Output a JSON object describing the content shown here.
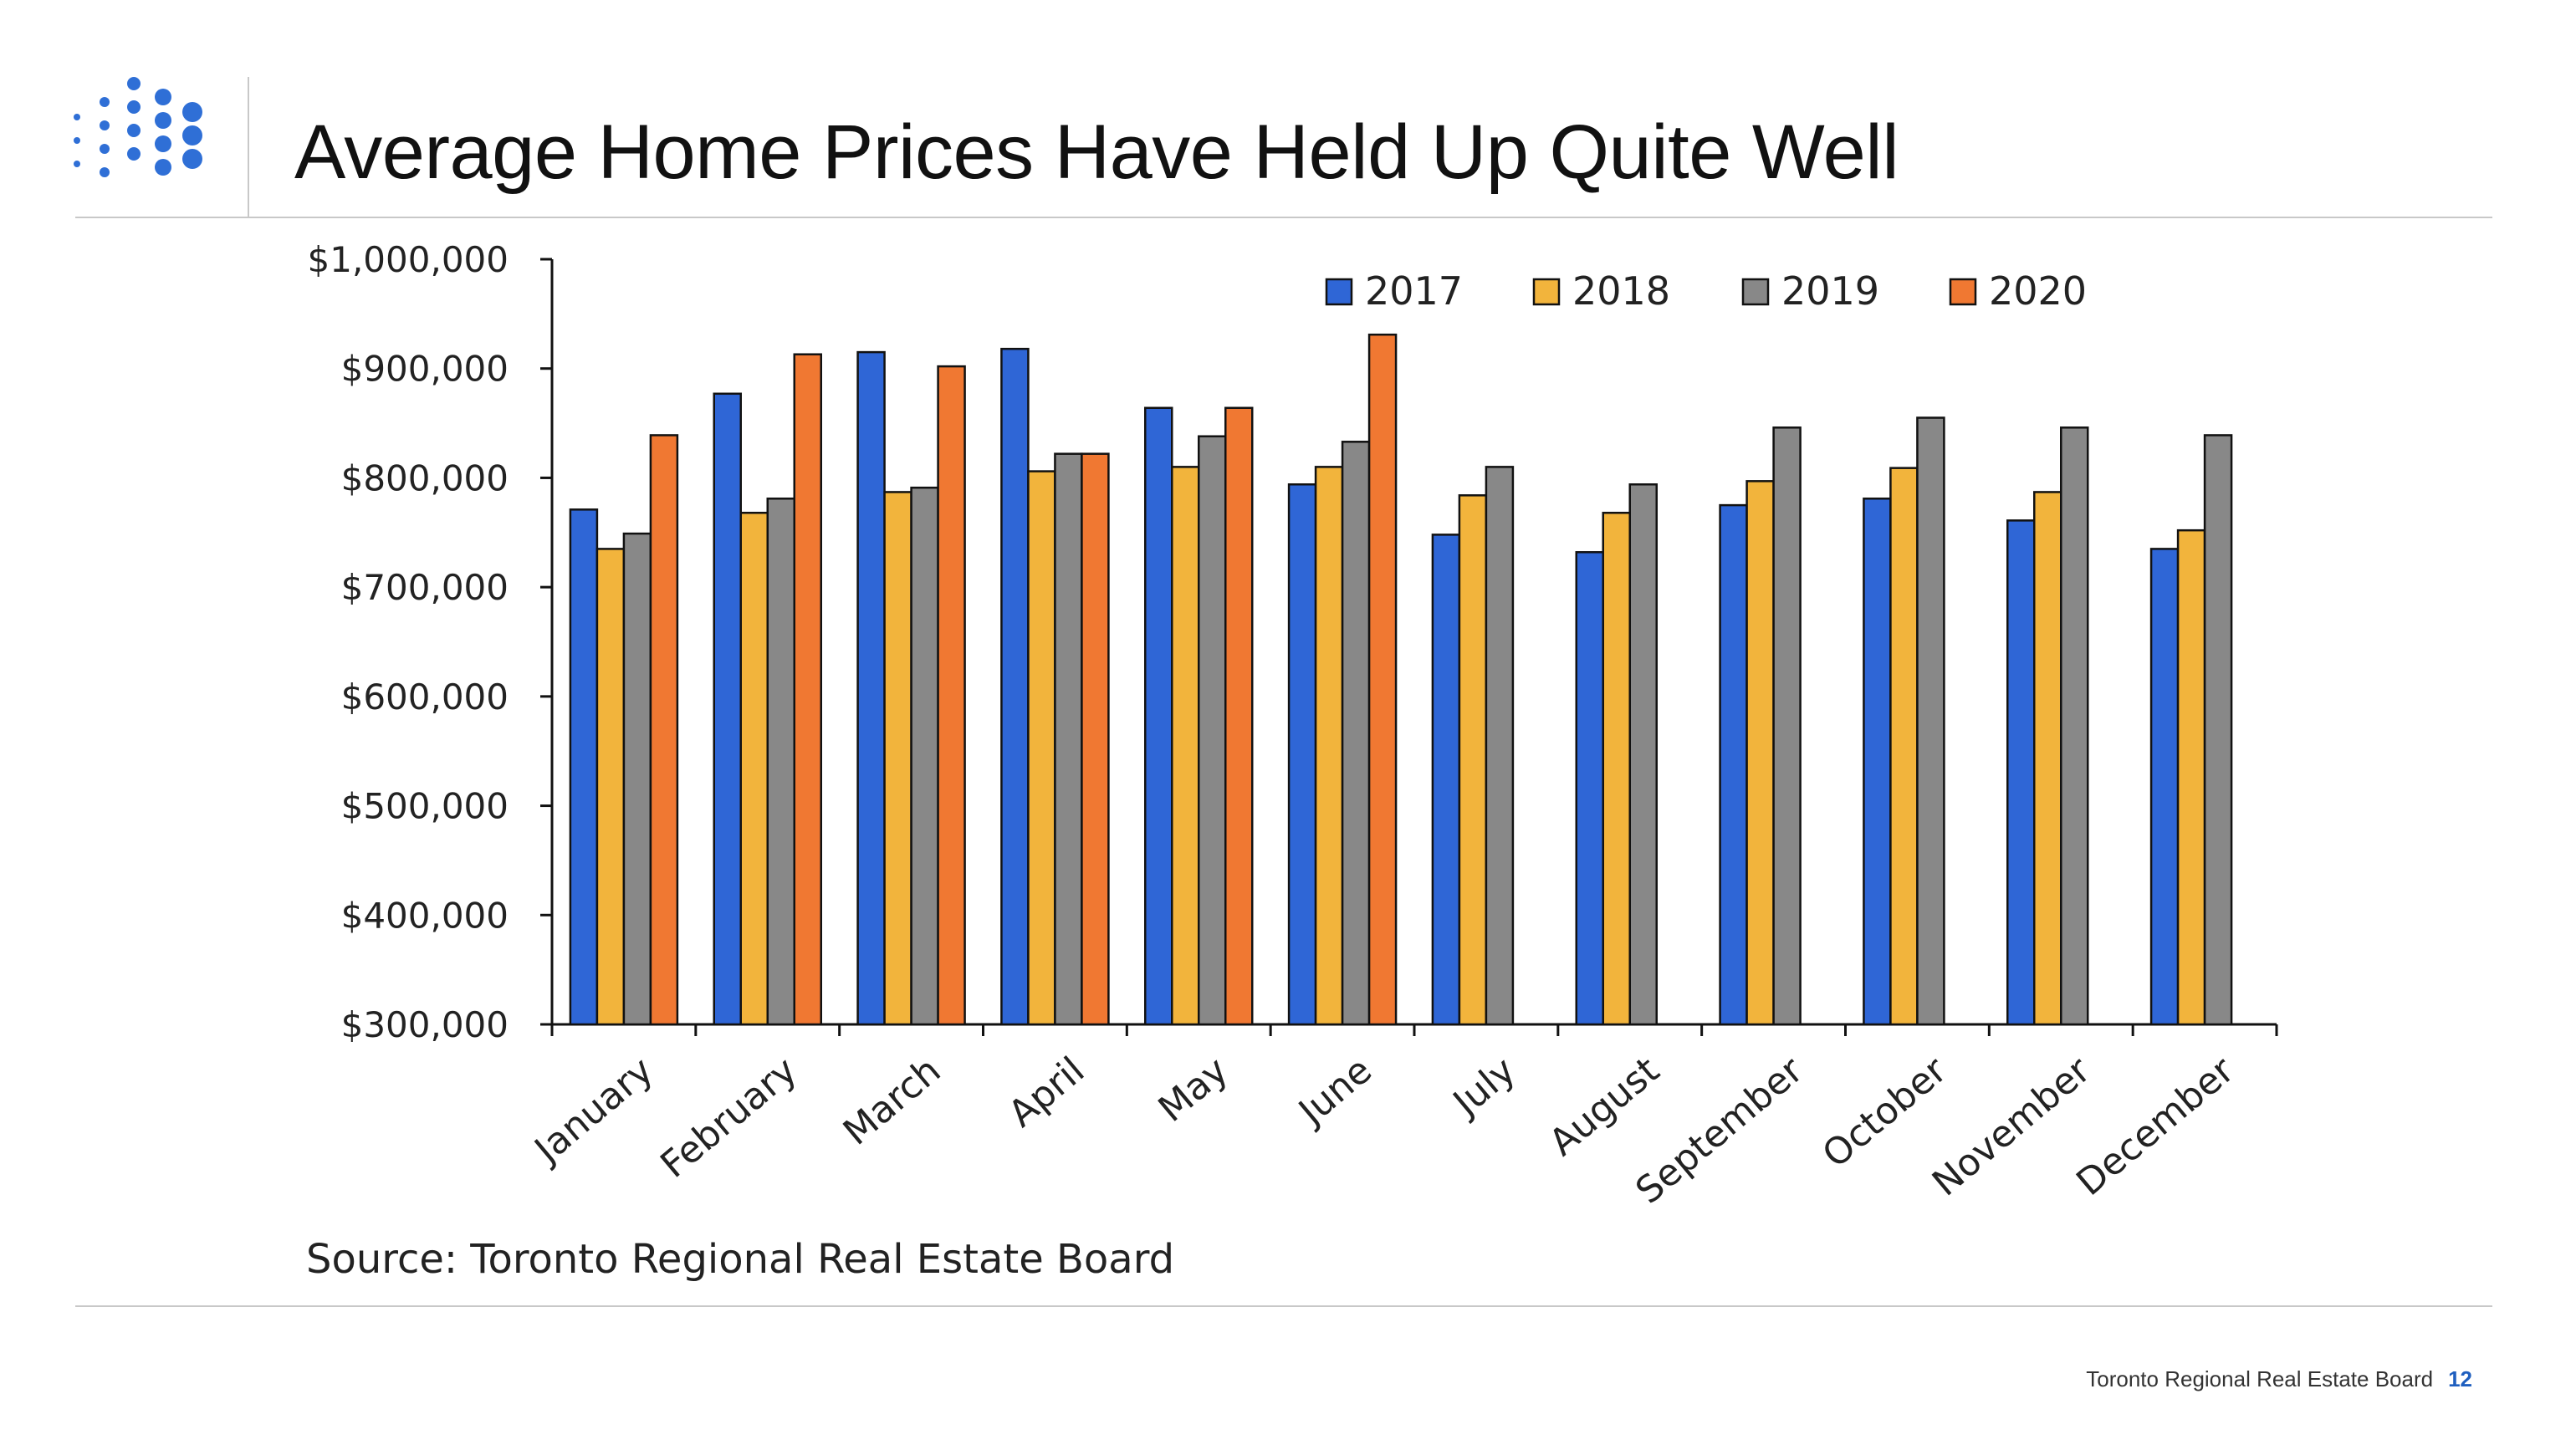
{
  "slide": {
    "title": "Average Home Prices Have Held Up Quite Well",
    "source": "Source: Toronto Regional Real Estate Board",
    "footer_org": "Toronto Regional Real Estate Board",
    "page_number": "12",
    "logo_color": "#2f6fd6",
    "logo_icon": "dot-grid-logo-icon"
  },
  "chart_data": {
    "type": "bar",
    "categories": [
      "January",
      "February",
      "March",
      "April",
      "May",
      "June",
      "July",
      "August",
      "September",
      "October",
      "November",
      "December"
    ],
    "series": [
      {
        "name": "2017",
        "color": "#2f66d6",
        "values": [
          771000,
          877000,
          915000,
          918000,
          864000,
          794000,
          748000,
          732000,
          775000,
          781000,
          761000,
          735000
        ]
      },
      {
        "name": "2018",
        "color": "#f2b43c",
        "values": [
          735000,
          768000,
          787000,
          806000,
          810000,
          810000,
          784000,
          768000,
          797000,
          809000,
          787000,
          752000
        ]
      },
      {
        "name": "2019",
        "color": "#888888",
        "values": [
          749000,
          781000,
          791000,
          822000,
          838000,
          833000,
          810000,
          794000,
          846000,
          855000,
          846000,
          839000
        ]
      },
      {
        "name": "2020",
        "color": "#f07832",
        "values": [
          839000,
          913000,
          902000,
          822000,
          864000,
          931000,
          null,
          null,
          null,
          null,
          null,
          null
        ]
      }
    ],
    "ylim": [
      300000,
      1000000
    ],
    "yticks": [
      300000,
      400000,
      500000,
      600000,
      700000,
      800000,
      900000,
      1000000
    ],
    "ytick_labels": [
      "$300,000",
      "$400,000",
      "$500,000",
      "$600,000",
      "$700,000",
      "$800,000",
      "$900,000",
      "$1,000,000"
    ],
    "xlabel": "",
    "ylabel": "",
    "grid": false,
    "legend_position": "top"
  }
}
